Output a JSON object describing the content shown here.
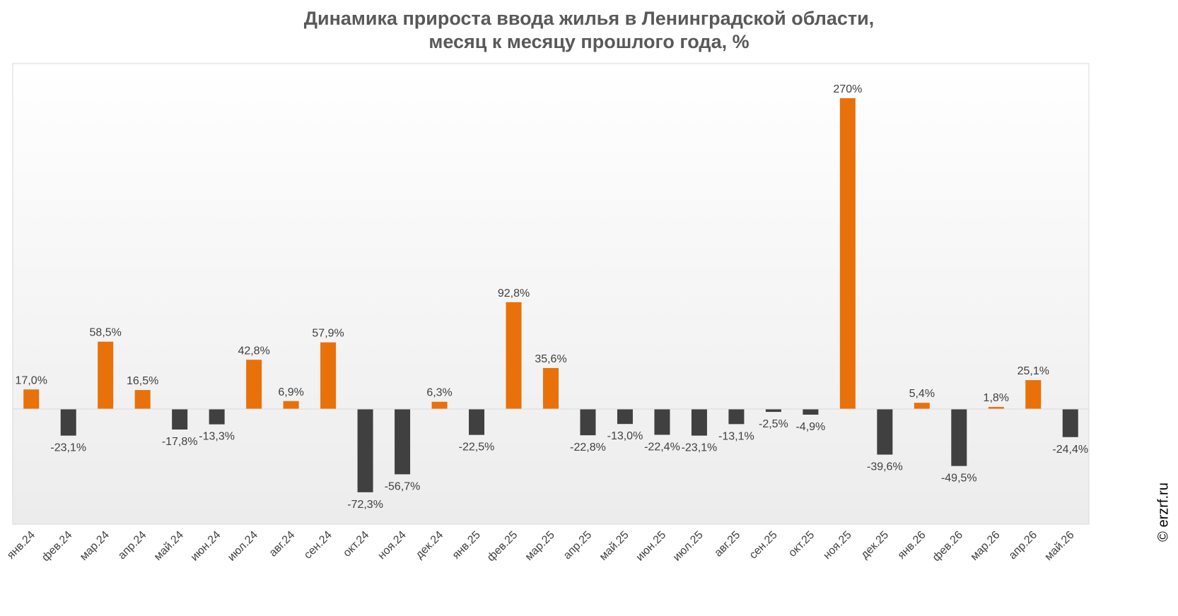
{
  "chart_data": {
    "type": "bar",
    "title": "Динамика прироста ввода жилья в Ленинградской области,",
    "subtitle": "месяц к месяцу прошлого года, %",
    "categories": [
      "янв.24",
      "фев.24",
      "мар.24",
      "апр.24",
      "май.24",
      "июн.24",
      "июл.24",
      "авг.24",
      "сен.24",
      "окт.24",
      "ноя.24",
      "дек.24",
      "янв.25",
      "фев.25",
      "мар.25",
      "апр.25",
      "май.25",
      "июн.25",
      "июл.25",
      "авг.25",
      "сен.25",
      "окт.25",
      "ноя.25",
      "дек.25",
      "янв.26",
      "фев.26",
      "мар.26",
      "апр.26",
      "май.26"
    ],
    "values": [
      17.0,
      -23.1,
      58.5,
      16.5,
      -17.8,
      -13.3,
      42.8,
      6.9,
      57.9,
      -72.3,
      -56.7,
      6.3,
      -22.5,
      92.8,
      35.6,
      -22.8,
      -13.0,
      -22.4,
      -23.1,
      -13.1,
      -2.5,
      -4.9,
      270,
      -39.6,
      5.4,
      -49.5,
      1.8,
      25.1,
      -24.4
    ],
    "data_labels": [
      "17,0%",
      "-23,1%",
      "58,5%",
      "16,5%",
      "-17,8%",
      "-13,3%",
      "42,8%",
      "6,9%",
      "57,9%",
      "-72,3%",
      "-56,7%",
      "6,3%",
      "-22,5%",
      "92,8%",
      "35,6%",
      "-22,8%",
      "-13,0%",
      "-22,4%",
      "-23,1%",
      "-13,1%",
      "-2,5%",
      "-4,9%",
      "270%",
      "-39,6%",
      "5,4%",
      "-49,5%",
      "1,8%",
      "25,1%",
      "-24,4%"
    ],
    "ylim": [
      -100,
      300
    ],
    "grid": false,
    "colors": {
      "positive": "#E8710A",
      "negative": "#404040"
    }
  },
  "copyright": "© erzrf.ru"
}
